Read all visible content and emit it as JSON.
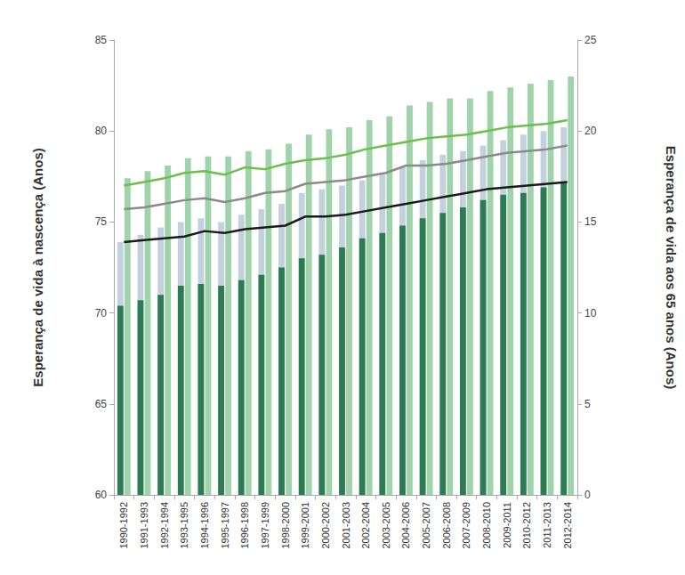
{
  "chart_data": {
    "type": "bar",
    "y_label": "Esperança de vida à nascença (Anos)",
    "y2_label": "Esperança de vida aos 65 anos (Anos)",
    "categories": [
      "1990-1992",
      "1991-1993",
      "1992-1994",
      "1993-1995",
      "1994-1996",
      "1995-1997",
      "1996-1998",
      "1997-1999",
      "1998-2000",
      "1999-2001",
      "2000-2002",
      "2001-2003",
      "2002-2004",
      "2003-2005",
      "2004-2006",
      "2005-2007",
      "2006-2008",
      "2007-2009",
      "2008-2010",
      "2009-2011",
      "2010-2012",
      "2011-2013",
      "2012-2014"
    ],
    "ylim": [
      60,
      85
    ],
    "yticks": [
      60,
      65,
      70,
      75,
      80,
      85
    ],
    "y2lim": [
      0,
      25
    ],
    "y2ticks": [
      0,
      5,
      10,
      15,
      20,
      25
    ],
    "grid": false,
    "series": [
      {
        "type": "bar",
        "color": "#c3d1de",
        "values": [
          73.9,
          74.3,
          74.7,
          75.0,
          75.2,
          75.0,
          75.4,
          75.7,
          76.0,
          76.6,
          76.8,
          77.0,
          77.3,
          77.6,
          78.0,
          78.4,
          78.7,
          78.9,
          79.2,
          79.5,
          79.8,
          80.0,
          80.2
        ]
      },
      {
        "type": "bar",
        "color": "#2b7c52",
        "values": [
          70.4,
          70.7,
          71.0,
          71.5,
          71.6,
          71.5,
          71.8,
          72.1,
          72.5,
          73.0,
          73.2,
          73.6,
          74.1,
          74.4,
          74.8,
          75.2,
          75.5,
          75.8,
          76.2,
          76.5,
          76.6,
          76.9,
          77.2
        ]
      },
      {
        "type": "bar",
        "color": "#9fd4aa",
        "values": [
          77.4,
          77.8,
          78.1,
          78.5,
          78.6,
          78.6,
          78.9,
          79.0,
          79.3,
          79.8,
          80.1,
          80.2,
          80.6,
          80.8,
          81.4,
          81.6,
          81.8,
          81.8,
          82.2,
          82.4,
          82.6,
          82.8,
          83.0
        ]
      },
      {
        "type": "line",
        "axis": "y2",
        "color": "#6cbf4a",
        "values": [
          17.0,
          17.2,
          17.4,
          17.7,
          17.8,
          17.6,
          18.0,
          17.9,
          18.2,
          18.4,
          18.5,
          18.7,
          19.0,
          19.2,
          19.4,
          19.6,
          19.7,
          19.8,
          20.0,
          20.2,
          20.3,
          20.4,
          20.6
        ]
      },
      {
        "type": "line",
        "axis": "y2",
        "color": "#8a8a8a",
        "values": [
          15.7,
          15.8,
          16.0,
          16.2,
          16.3,
          16.1,
          16.3,
          16.6,
          16.7,
          17.1,
          17.2,
          17.3,
          17.5,
          17.7,
          18.1,
          18.1,
          18.2,
          18.4,
          18.6,
          18.8,
          18.9,
          19.0,
          19.2
        ]
      },
      {
        "type": "line",
        "axis": "y2",
        "color": "#1a1a1a",
        "values": [
          13.9,
          14.0,
          14.1,
          14.2,
          14.5,
          14.4,
          14.6,
          14.7,
          14.8,
          15.3,
          15.3,
          15.4,
          15.6,
          15.8,
          16.0,
          16.2,
          16.4,
          16.6,
          16.8,
          16.9,
          17.0,
          17.1,
          17.2
        ]
      }
    ]
  }
}
